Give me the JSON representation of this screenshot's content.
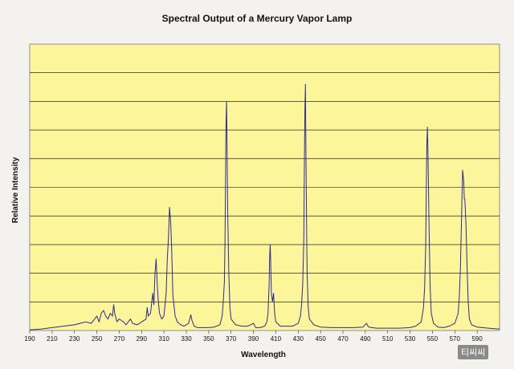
{
  "chart_data": {
    "type": "line",
    "title": "Spectral Output of a Mercury Vapor Lamp",
    "xlabel": "Wavelength",
    "ylabel": "Relative Intensity",
    "xlim": [
      190,
      610
    ],
    "ylim": [
      0,
      10
    ],
    "grid": true,
    "x_ticks": [
      190,
      210,
      230,
      250,
      270,
      290,
      310,
      330,
      350,
      370,
      390,
      410,
      430,
      450,
      470,
      490,
      510,
      530,
      550,
      570,
      590
    ],
    "y_gridlines": 9,
    "colors": {
      "plot_bg": "#fdf599",
      "line": "#2a2a9a",
      "grid": "#000000",
      "page_bg": "#f4f2ee"
    },
    "series": [
      {
        "values": [
          [
            190,
            0.02
          ],
          [
            200,
            0.05
          ],
          [
            210,
            0.1
          ],
          [
            220,
            0.15
          ],
          [
            230,
            0.2
          ],
          [
            235,
            0.25
          ],
          [
            240,
            0.3
          ],
          [
            245,
            0.25
          ],
          [
            250,
            0.5
          ],
          [
            252,
            0.3
          ],
          [
            254,
            0.6
          ],
          [
            256,
            0.7
          ],
          [
            258,
            0.5
          ],
          [
            260,
            0.4
          ],
          [
            262,
            0.6
          ],
          [
            264,
            0.5
          ],
          [
            265,
            0.9
          ],
          [
            266,
            0.6
          ],
          [
            268,
            0.3
          ],
          [
            270,
            0.4
          ],
          [
            272,
            0.35
          ],
          [
            274,
            0.3
          ],
          [
            276,
            0.2
          ],
          [
            280,
            0.4
          ],
          [
            282,
            0.25
          ],
          [
            286,
            0.2
          ],
          [
            290,
            0.3
          ],
          [
            294,
            0.4
          ],
          [
            295,
            0.8
          ],
          [
            296,
            0.5
          ],
          [
            298,
            0.6
          ],
          [
            300,
            1.3
          ],
          [
            301,
            0.9
          ],
          [
            302,
            2.0
          ],
          [
            303,
            2.5
          ],
          [
            304,
            1.6
          ],
          [
            305,
            1.0
          ],
          [
            306,
            0.6
          ],
          [
            308,
            0.4
          ],
          [
            310,
            0.5
          ],
          [
            312,
            1.3
          ],
          [
            313,
            2.5
          ],
          [
            314,
            3.2
          ],
          [
            315,
            4.3
          ],
          [
            316,
            3.8
          ],
          [
            317,
            2.7
          ],
          [
            318,
            1.2
          ],
          [
            320,
            0.5
          ],
          [
            322,
            0.3
          ],
          [
            325,
            0.2
          ],
          [
            328,
            0.15
          ],
          [
            330,
            0.2
          ],
          [
            332,
            0.25
          ],
          [
            333,
            0.4
          ],
          [
            334,
            0.55
          ],
          [
            335,
            0.35
          ],
          [
            337,
            0.15
          ],
          [
            340,
            0.1
          ],
          [
            345,
            0.1
          ],
          [
            350,
            0.1
          ],
          [
            355,
            0.12
          ],
          [
            360,
            0.2
          ],
          [
            362,
            0.5
          ],
          [
            363,
            1.0
          ],
          [
            364,
            1.7
          ],
          [
            364.5,
            3.0
          ],
          [
            365,
            5.0
          ],
          [
            365.5,
            7.2
          ],
          [
            366,
            8.0
          ],
          [
            366.5,
            6.2
          ],
          [
            367,
            4.2
          ],
          [
            368,
            2.0
          ],
          [
            369,
            0.8
          ],
          [
            370,
            0.4
          ],
          [
            374,
            0.2
          ],
          [
            380,
            0.15
          ],
          [
            385,
            0.15
          ],
          [
            390,
            0.25
          ],
          [
            392,
            0.1
          ],
          [
            396,
            0.1
          ],
          [
            400,
            0.15
          ],
          [
            402,
            0.3
          ],
          [
            403,
            0.6
          ],
          [
            404,
            1.6
          ],
          [
            404.5,
            2.6
          ],
          [
            405,
            3.0
          ],
          [
            405.5,
            2.2
          ],
          [
            406,
            1.3
          ],
          [
            407,
            1.0
          ],
          [
            408,
            1.3
          ],
          [
            409,
            0.6
          ],
          [
            410,
            0.3
          ],
          [
            414,
            0.15
          ],
          [
            420,
            0.15
          ],
          [
            425,
            0.15
          ],
          [
            430,
            0.25
          ],
          [
            432,
            0.5
          ],
          [
            433,
            0.9
          ],
          [
            434,
            1.6
          ],
          [
            435,
            3.2
          ],
          [
            435.5,
            5.5
          ],
          [
            436,
            7.6
          ],
          [
            436.5,
            8.6
          ],
          [
            437,
            6.0
          ],
          [
            437.5,
            3.8
          ],
          [
            438,
            2.0
          ],
          [
            439,
            0.8
          ],
          [
            440,
            0.4
          ],
          [
            444,
            0.2
          ],
          [
            450,
            0.12
          ],
          [
            460,
            0.1
          ],
          [
            470,
            0.1
          ],
          [
            480,
            0.1
          ],
          [
            488,
            0.12
          ],
          [
            491,
            0.25
          ],
          [
            493,
            0.12
          ],
          [
            500,
            0.08
          ],
          [
            510,
            0.08
          ],
          [
            520,
            0.08
          ],
          [
            530,
            0.1
          ],
          [
            535,
            0.15
          ],
          [
            540,
            0.3
          ],
          [
            542,
            0.8
          ],
          [
            543,
            1.5
          ],
          [
            544,
            3.0
          ],
          [
            544.5,
            5.0
          ],
          [
            545,
            6.5
          ],
          [
            545.5,
            7.1
          ],
          [
            546,
            6.2
          ],
          [
            547,
            3.5
          ],
          [
            548,
            1.5
          ],
          [
            549,
            0.6
          ],
          [
            551,
            0.25
          ],
          [
            555,
            0.12
          ],
          [
            560,
            0.1
          ],
          [
            565,
            0.15
          ],
          [
            570,
            0.25
          ],
          [
            573,
            0.6
          ],
          [
            574,
            1.2
          ],
          [
            575,
            2.2
          ],
          [
            576,
            3.8
          ],
          [
            577,
            5.6
          ],
          [
            578,
            5.2
          ],
          [
            578.5,
            4.6
          ],
          [
            579,
            4.6
          ],
          [
            580,
            3.7
          ],
          [
            581,
            2.2
          ],
          [
            582,
            1.0
          ],
          [
            583,
            0.4
          ],
          [
            585,
            0.2
          ],
          [
            590,
            0.12
          ],
          [
            600,
            0.08
          ],
          [
            610,
            0.05
          ]
        ]
      }
    ]
  },
  "watermark": {
    "text": "티씨씨"
  }
}
